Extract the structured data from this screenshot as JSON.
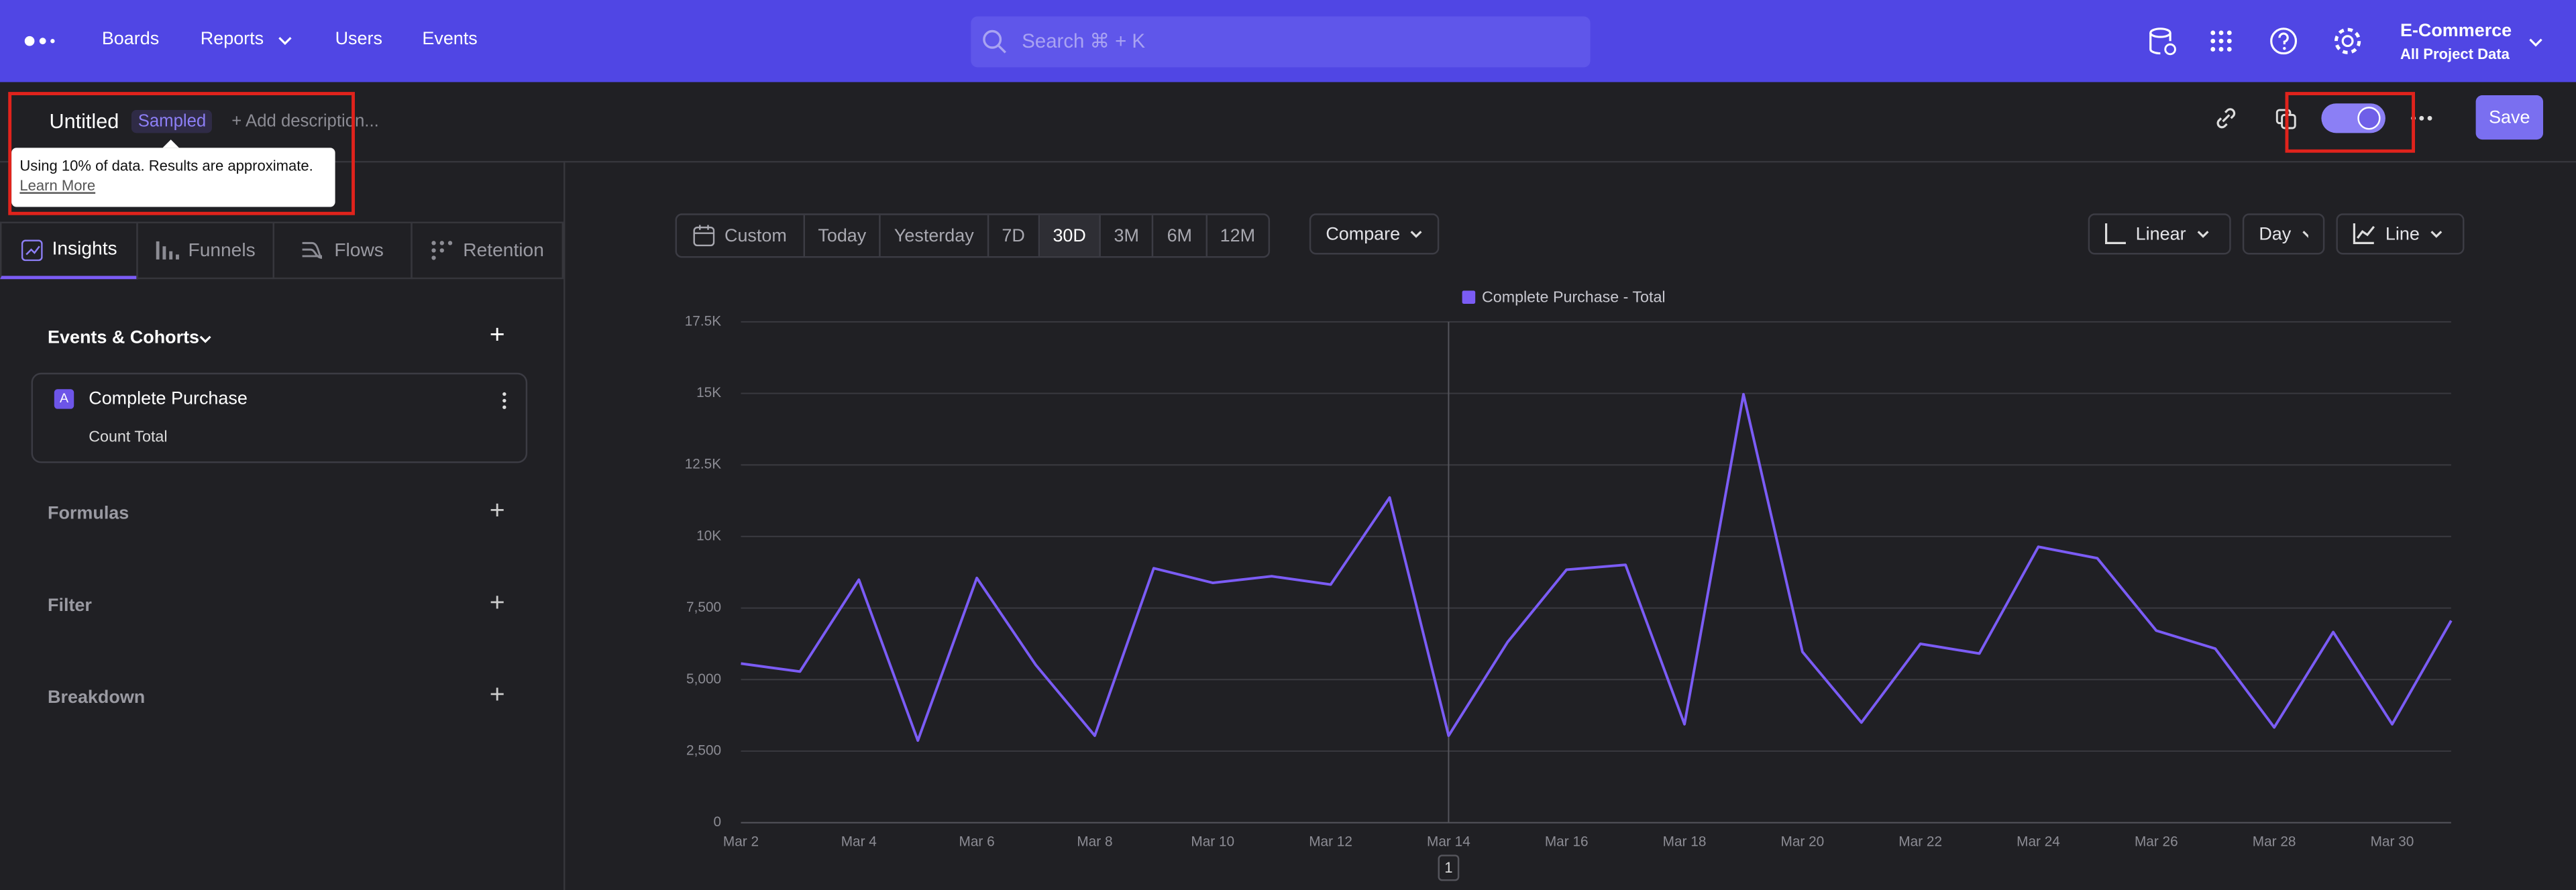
{
  "nav": {
    "items": [
      "Boards",
      "Reports",
      "Users",
      "Events"
    ],
    "search": "Search ⌘ + K",
    "project": "E-Commerce",
    "project_sub": "All Project Data"
  },
  "header": {
    "title": "Untitled",
    "badge": "Sampled",
    "description": "+ Add description...",
    "tooltip": "Using 10% of data. Results are approximate.",
    "tooltip_link": "Learn More",
    "save": "Save"
  },
  "tabs": [
    "Insights",
    "Funnels",
    "Flows",
    "Retention"
  ],
  "sidebar": {
    "events_title": "Events & Cohorts",
    "event_letter": "A",
    "event_name": "Complete Purchase",
    "event_measure": "Count Total",
    "sections": [
      "Formulas",
      "Filter",
      "Breakdown"
    ]
  },
  "toolbar": {
    "ranges": [
      "Custom",
      "Today",
      "Yesterday",
      "7D",
      "30D",
      "3M",
      "6M",
      "12M"
    ],
    "compare": "Compare",
    "scale": "Linear",
    "unit": "Day",
    "chart_type": "Line"
  },
  "chart_data": {
    "type": "line",
    "categories": [
      "Mar 2",
      null,
      "Mar 4",
      null,
      "Mar 6",
      null,
      "Mar 8",
      null,
      "Mar 10",
      null,
      "Mar 12",
      null,
      "Mar 14",
      null,
      "Mar 16",
      null,
      "Mar 18",
      null,
      "Mar 20",
      null,
      "Mar 22",
      null,
      "Mar 24",
      null,
      "Mar 26",
      null,
      "Mar 28",
      null,
      "Mar 30",
      null
    ],
    "series": [
      {
        "name": "Complete Purchase - Total",
        "color": "#7b5cf5",
        "values": [
          5560,
          5280,
          8490,
          2870,
          8550,
          5510,
          3040,
          8890,
          8380,
          8610,
          8320,
          11360,
          3040,
          6310,
          8840,
          9010,
          3440,
          14970,
          5970,
          3500,
          6250,
          5910,
          9640,
          9240,
          6710,
          6080,
          3330,
          6660,
          3440,
          7060
        ]
      }
    ],
    "ylim": [
      0,
      17500
    ],
    "yticks": [
      0,
      {
        "value": 2500,
        "label": "2,500"
      },
      {
        "value": 5000,
        "label": "5,000"
      },
      {
        "value": 7500,
        "label": "7,500"
      },
      {
        "value": 10000,
        "label": "10K"
      },
      {
        "value": 12500,
        "label": "12.5K"
      },
      {
        "value": 15000,
        "label": "15K"
      },
      {
        "value": 17500,
        "label": "17.5K"
      }
    ],
    "grid": true,
    "annotation": "1"
  }
}
